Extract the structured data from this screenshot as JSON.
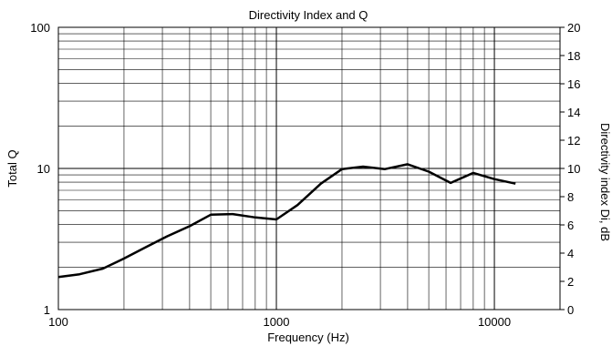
{
  "chart_data": {
    "type": "line",
    "title": "Directivity Index and Q",
    "xlabel": "Frequency (Hz)",
    "ylabel_left": "Total Q",
    "ylabel_right": "Directivity index Di, dB",
    "x_scale": "log",
    "y_left_scale": "log",
    "xlim": [
      100,
      20000
    ],
    "ylim_left": [
      1,
      100
    ],
    "ylim_right": [
      0,
      20
    ],
    "grid": true,
    "x_ticks": [
      100,
      1000,
      10000
    ],
    "x_tick_labels": [
      "100",
      "1000",
      "10000"
    ],
    "y_left_ticks": [
      1,
      10,
      100
    ],
    "y_left_tick_labels": [
      "1",
      "10",
      "100"
    ],
    "y_right_ticks": [
      0,
      2,
      4,
      6,
      8,
      10,
      12,
      14,
      16,
      18,
      20
    ],
    "y_right_tick_labels": [
      "0",
      "2",
      "4",
      "6",
      "8",
      "10",
      "12",
      "14",
      "16",
      "18",
      "20"
    ],
    "series": [
      {
        "color": "#000000",
        "x": [
          100,
          125,
          160,
          200,
          250,
          315,
          400,
          500,
          630,
          800,
          1000,
          1250,
          1600,
          2000,
          2500,
          3150,
          4000,
          5000,
          6300,
          8000,
          10000,
          12500
        ],
        "y": [
          1.7,
          1.78,
          1.95,
          2.3,
          2.75,
          3.3,
          3.9,
          4.7,
          4.75,
          4.5,
          4.35,
          5.5,
          7.8,
          9.9,
          10.3,
          9.9,
          10.7,
          9.5,
          7.9,
          9.3,
          8.4,
          7.8
        ]
      }
    ]
  }
}
